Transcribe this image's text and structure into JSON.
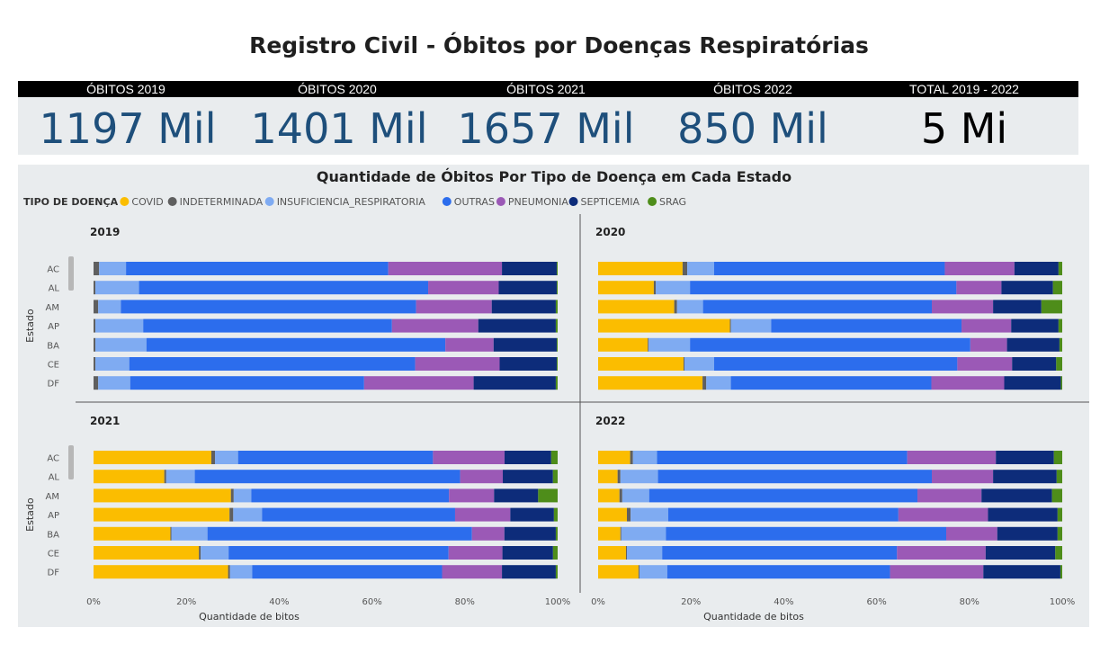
{
  "page": {
    "title": "Registro Civil - Óbitos por Doenças Respiratórias"
  },
  "kpis": [
    {
      "label": "ÓBITOS 2019",
      "value": "1197 Mil"
    },
    {
      "label": "ÓBITOS 2020",
      "value": "1401 Mil"
    },
    {
      "label": "ÓBITOS 2021",
      "value": "1657 Mil"
    },
    {
      "label": "ÓBITOS 2022",
      "value": "850 Mil"
    },
    {
      "label": "TOTAL 2019 - 2022",
      "value": "5 Mi"
    }
  ],
  "colors": {
    "COVID": "#fbbd00",
    "INDETERMINADA": "#5f5f5f",
    "INSUFICIENCIA_RESPIRATORIA": "#7fabf2",
    "OUTRAS": "#2c6ded",
    "PNEUMONIA": "#9b59b6",
    "SEPTICEMIA": "#0d2c7a",
    "SRAG": "#4e8d1a",
    "kpi_value": "#1e4f7b",
    "panel_bg": "#e9ecee"
  },
  "chart_data": {
    "type": "bar",
    "orientation": "horizontal",
    "stacked": "100%",
    "title": "Quantidade de Óbitos Por Tipo de Doença em Cada Estado",
    "legend": {
      "title": "TIPO DE DOENÇA",
      "position": "top-left",
      "items": [
        "COVID",
        "INDETERMINADA",
        "INSUFICIENCIA_RESPIRATORIA",
        "OUTRAS",
        "PNEUMONIA",
        "SEPTICEMIA",
        "SRAG"
      ]
    },
    "ylabel": "Estado",
    "xlabel": "Quantidade de bitos",
    "xticks": [
      "0%",
      "20%",
      "40%",
      "60%",
      "80%",
      "100%"
    ],
    "xlim": [
      0,
      100
    ],
    "categories": [
      "AC",
      "AL",
      "AM",
      "AP",
      "BA",
      "CE",
      "DF"
    ],
    "panels": [
      {
        "name": "2019",
        "rows": [
          [
            0,
            1.2,
            5.8,
            56.5,
            24.5,
            11.8,
            0.2
          ],
          [
            0,
            0.4,
            9.4,
            62.3,
            15.2,
            12.5,
            0.2
          ],
          [
            0,
            1.0,
            4.9,
            63.6,
            16.3,
            13.8,
            0.4
          ],
          [
            0,
            0.4,
            10.3,
            53.6,
            18.6,
            16.7,
            0.4
          ],
          [
            0,
            0.4,
            11.0,
            64.4,
            10.4,
            13.6,
            0.2
          ],
          [
            0,
            0.4,
            7.3,
            61.6,
            18.2,
            12.3,
            0.2
          ],
          [
            0,
            1.0,
            6.9,
            50.4,
            23.6,
            17.7,
            0.4
          ]
        ]
      },
      {
        "name": "2020",
        "rows": [
          [
            18.2,
            1.0,
            5.8,
            49.7,
            15.0,
            9.5,
            0.8
          ],
          [
            12.0,
            0.4,
            7.4,
            57.4,
            9.7,
            11.1,
            2.0
          ],
          [
            16.4,
            0.6,
            5.6,
            49.3,
            13.2,
            10.4,
            4.5
          ],
          [
            28.4,
            0.2,
            8.7,
            41.0,
            10.7,
            10.2,
            0.8
          ],
          [
            10.7,
            0.2,
            8.9,
            60.4,
            7.9,
            11.3,
            0.6
          ],
          [
            18.4,
            0.2,
            6.4,
            52.4,
            11.8,
            9.5,
            1.3
          ],
          [
            22.5,
            0.8,
            5.3,
            43.2,
            15.7,
            12.2,
            0.3
          ]
        ]
      },
      {
        "name": "2021",
        "rows": [
          [
            25.5,
            0.8,
            5.0,
            42.2,
            15.5,
            10.1,
            1.4
          ],
          [
            15.1,
            0.4,
            6.1,
            56.6,
            9.1,
            10.7,
            1.0
          ],
          [
            29.6,
            0.6,
            3.8,
            42.6,
            9.7,
            9.5,
            4.2
          ],
          [
            29.3,
            0.8,
            6.2,
            41.6,
            11.9,
            9.4,
            0.8
          ],
          [
            16.6,
            0.2,
            7.8,
            57.1,
            7.0,
            11.1,
            0.4
          ],
          [
            22.7,
            0.4,
            6.0,
            47.4,
            11.6,
            10.9,
            1.0
          ],
          [
            29.0,
            0.4,
            4.8,
            40.9,
            12.9,
            11.6,
            0.4
          ]
        ]
      },
      {
        "name": "2022",
        "rows": [
          [
            6.9,
            0.6,
            5.2,
            53.9,
            19.1,
            12.5,
            1.8
          ],
          [
            4.2,
            0.6,
            8.1,
            59.0,
            13.2,
            13.7,
            1.2
          ],
          [
            4.6,
            0.6,
            5.8,
            57.8,
            13.8,
            15.2,
            2.2
          ],
          [
            6.2,
            0.8,
            8.1,
            49.6,
            19.3,
            15.0,
            1.0
          ],
          [
            4.8,
            0.2,
            9.6,
            60.4,
            11.0,
            13.0,
            1.0
          ],
          [
            6.0,
            0.2,
            7.6,
            50.6,
            19.1,
            15.0,
            1.5
          ],
          [
            8.7,
            0.2,
            6.0,
            48.0,
            20.1,
            16.6,
            0.4
          ]
        ]
      }
    ]
  }
}
